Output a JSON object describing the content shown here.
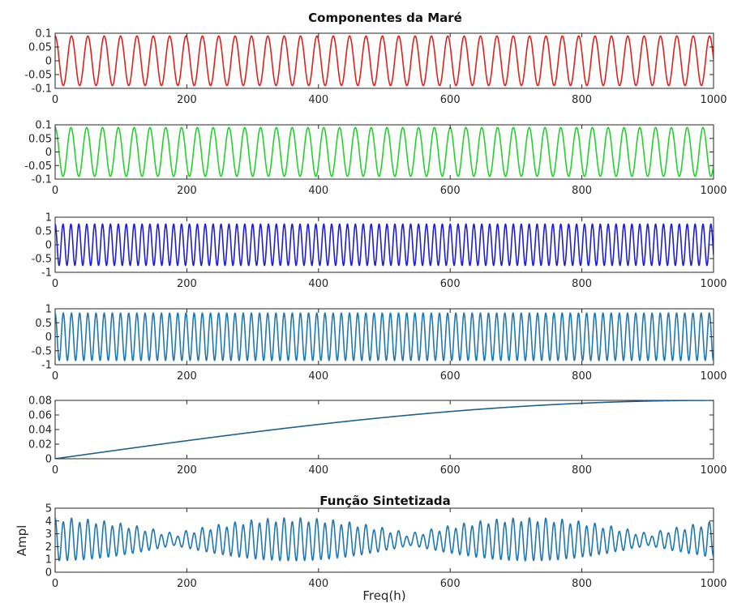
{
  "figure": {
    "title_top": "Componentes da Maré",
    "title_bottom": "Função Sintetizada",
    "xlabel": "Freq(h)",
    "ylabel": "Ampl"
  },
  "chart_data": [
    {
      "type": "line",
      "title": "Componentes da Maré",
      "series": [
        {
          "function": "0.09*cos(2*pi*x/24.85)",
          "color": "#e0201a",
          "amplitude": 0.09,
          "period_h": 24.85
        }
      ],
      "xlim": [
        0,
        1000
      ],
      "ylim": [
        -0.1,
        0.1
      ],
      "xticks": [
        0,
        200,
        400,
        600,
        800,
        1000
      ],
      "yticks": [
        0.1,
        0.05,
        0,
        -0.05,
        -0.1
      ],
      "ytick_labels": [
        "0.1",
        "0.05",
        "0",
        "-0.05",
        "-0.1"
      ]
    },
    {
      "type": "line",
      "series": [
        {
          "function": "0.09*cos(2*pi*x/24.0)",
          "color": "#22d22b",
          "amplitude": 0.09,
          "period_h": 24.0
        }
      ],
      "xlim": [
        0,
        1000
      ],
      "ylim": [
        -0.1,
        0.1
      ],
      "xticks": [
        0,
        200,
        400,
        600,
        800,
        1000
      ],
      "yticks": [
        0.1,
        0.05,
        0,
        -0.05,
        -0.1
      ],
      "ytick_labels": [
        "0.1",
        "0.05",
        "0",
        "-0.05",
        "-0.1"
      ]
    },
    {
      "type": "line",
      "series": [
        {
          "function": "0.75*cos(2*pi*x/12.0)",
          "color": "#1d1dd6",
          "amplitude": 0.75,
          "period_h": 12.0
        }
      ],
      "xlim": [
        0,
        1000
      ],
      "ylim": [
        -1,
        1
      ],
      "xticks": [
        0,
        200,
        400,
        600,
        800,
        1000
      ],
      "yticks": [
        1,
        0.5,
        0,
        -0.5,
        -1
      ],
      "ytick_labels": [
        "1",
        "0.5",
        "0",
        "-0.5",
        "-1"
      ]
    },
    {
      "type": "line",
      "series": [
        {
          "function": "0.85*cos(2*pi*x/12.42)",
          "color": "#1f77b4",
          "amplitude": 0.85,
          "period_h": 12.42
        }
      ],
      "xlim": [
        0,
        1000
      ],
      "ylim": [
        -1,
        1
      ],
      "xticks": [
        0,
        200,
        400,
        600,
        800,
        1000
      ],
      "yticks": [
        1,
        0.5,
        0,
        -0.5,
        -1
      ],
      "ytick_labels": [
        "1",
        "0.5",
        "0",
        "-0.5",
        "-1"
      ]
    },
    {
      "type": "line",
      "series": [
        {
          "function": "0.08*sin(pi*x/2000)",
          "color": "#1f5f8b",
          "start": 0,
          "end": 0.08
        }
      ],
      "xlim": [
        0,
        1000
      ],
      "ylim": [
        0,
        0.08
      ],
      "xticks": [
        0,
        200,
        400,
        600,
        800,
        1000
      ],
      "yticks": [
        0.08,
        0.06,
        0.04,
        0.02,
        0
      ],
      "ytick_labels": [
        "0.08",
        "0.06",
        "0.04",
        "0.02",
        "0"
      ]
    },
    {
      "type": "line",
      "title": "Função Sintetizada",
      "series": [
        {
          "function": "2.5 + 1.6*cos(2*pi*x/12.42)*|cos(pi*x/360)| with small diurnal terms",
          "color": "#1f77b4"
        }
      ],
      "xlim": [
        0,
        1000
      ],
      "ylim": [
        0,
        5
      ],
      "xticks": [
        0,
        200,
        400,
        600,
        800,
        1000
      ],
      "yticks": [
        5,
        4,
        3,
        2,
        1,
        0
      ],
      "ytick_labels": [
        "5",
        "4",
        "3",
        "2",
        "1",
        "0"
      ],
      "xlabel": "Freq(h)",
      "ylabel": "Ampl"
    }
  ]
}
